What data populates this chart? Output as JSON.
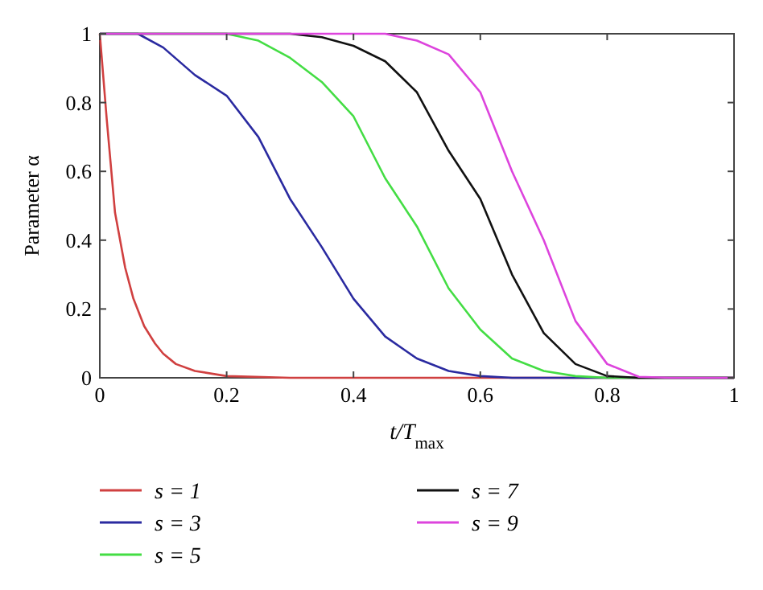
{
  "chart_data": {
    "type": "line",
    "xlabel": "t/T$_{max}$",
    "ylabel": "Parameter α",
    "xlim": [
      0,
      1
    ],
    "ylim": [
      0,
      1
    ],
    "xticks": [
      0,
      0.2,
      0.4,
      0.6,
      0.8,
      1
    ],
    "yticks": [
      0,
      0.2,
      0.4,
      0.6,
      0.8,
      1
    ],
    "grid": false,
    "legend": "bottom",
    "marker": "none",
    "line_style": "solid",
    "series": [
      {
        "name": "s = 1",
        "color": "#d04040",
        "x": [
          0,
          0.011,
          0.024,
          0.04,
          0.053,
          0.07,
          0.087,
          0.1,
          0.12,
          0.15,
          0.2,
          0.3,
          1
        ],
        "values": [
          1,
          0.75,
          0.48,
          0.32,
          0.23,
          0.15,
          0.1,
          0.07,
          0.04,
          0.02,
          0.005,
          0,
          0
        ]
      },
      {
        "name": "s = 3",
        "color": "#2a2aa0",
        "x": [
          0,
          0.06,
          0.1,
          0.15,
          0.2,
          0.25,
          0.3,
          0.35,
          0.4,
          0.45,
          0.5,
          0.55,
          0.6,
          0.65,
          1
        ],
        "values": [
          1,
          1,
          0.96,
          0.88,
          0.82,
          0.7,
          0.52,
          0.38,
          0.23,
          0.12,
          0.056,
          0.02,
          0.005,
          0,
          0
        ]
      },
      {
        "name": "s = 5",
        "color": "#44dd44",
        "x": [
          0,
          0.2,
          0.25,
          0.3,
          0.35,
          0.4,
          0.45,
          0.5,
          0.55,
          0.6,
          0.65,
          0.7,
          0.75,
          0.8,
          1
        ],
        "values": [
          1,
          1,
          0.98,
          0.93,
          0.86,
          0.76,
          0.58,
          0.44,
          0.26,
          0.14,
          0.056,
          0.02,
          0.005,
          0,
          0
        ]
      },
      {
        "name": "s = 7",
        "color": "#111111",
        "x": [
          0,
          0.3,
          0.35,
          0.4,
          0.45,
          0.5,
          0.55,
          0.6,
          0.65,
          0.7,
          0.75,
          0.8,
          0.85,
          1
        ],
        "values": [
          1,
          1,
          0.99,
          0.965,
          0.92,
          0.83,
          0.66,
          0.52,
          0.3,
          0.13,
          0.04,
          0.005,
          0,
          0
        ]
      },
      {
        "name": "s = 9",
        "color": "#dd44dd",
        "x": [
          0,
          0.45,
          0.5,
          0.55,
          0.6,
          0.65,
          0.7,
          0.75,
          0.8,
          0.85,
          0.9,
          1
        ],
        "values": [
          1,
          1,
          0.98,
          0.94,
          0.83,
          0.6,
          0.4,
          0.165,
          0.04,
          0.003,
          0,
          0
        ]
      }
    ]
  }
}
